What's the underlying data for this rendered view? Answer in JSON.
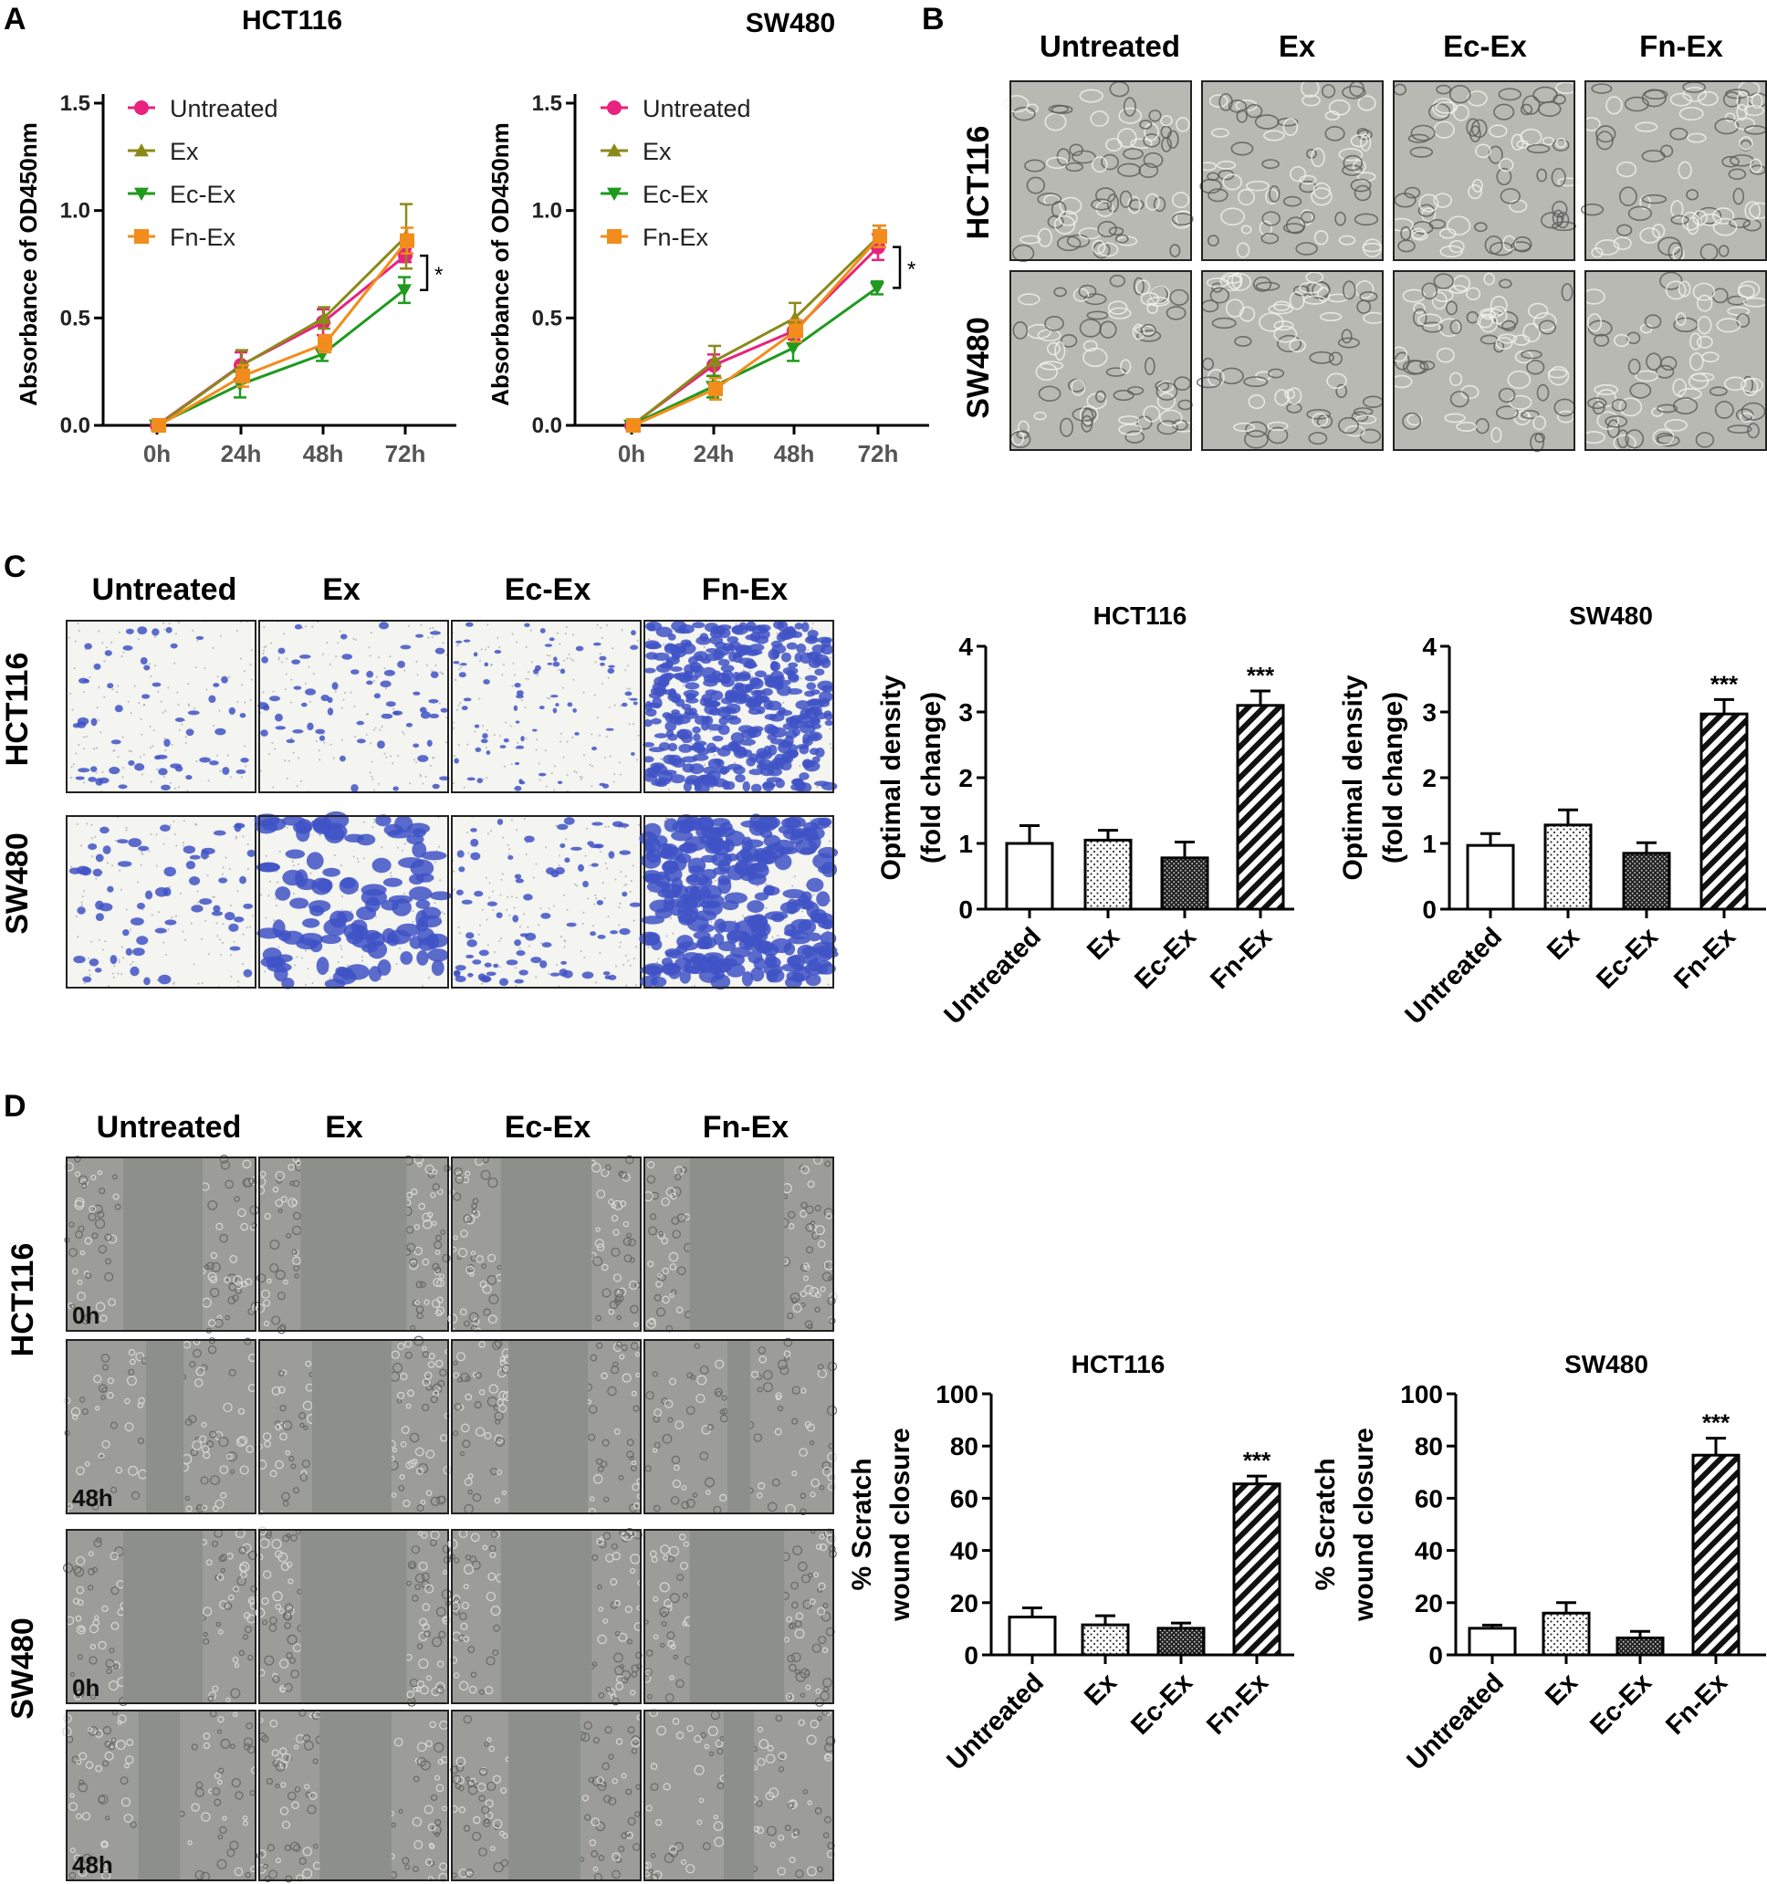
{
  "panel_letters": {
    "a": "A",
    "b": "B",
    "c": "C",
    "d": "D"
  },
  "groups": [
    "Untreated",
    "Ex",
    "Ec-Ex",
    "Fn-Ex"
  ],
  "cell_lines": [
    "HCT116",
    "SW480"
  ],
  "time_tags": {
    "t0": "0h",
    "t48": "48h"
  },
  "colors": {
    "untreated": "#e8227e",
    "ex": "#8a8a1a",
    "ecex": "#1e9a1e",
    "fnex": "#f28c1c",
    "cell_bg": "#b9b9b4",
    "transwell_bg": "#f4f4f0",
    "stain": "#3f52c6",
    "scratch_bg": "#9c9d98",
    "gap": "#8d8f8a"
  },
  "chart_data": [
    {
      "id": "A-HCT116",
      "type": "line",
      "title": "HCT116",
      "xlabel": "",
      "ylabel": "Absorbance of OD450nm",
      "categories": [
        "0h",
        "24h",
        "48h",
        "72h"
      ],
      "ylim": [
        0,
        1.5
      ],
      "yticks": [
        "0.0",
        "0.5",
        "1.0",
        "1.5"
      ],
      "legend": "top-left",
      "significance": "*",
      "series": [
        {
          "name": "Untreated",
          "color": "#e8227e",
          "marker": "circle",
          "values": [
            0,
            0.28,
            0.48,
            0.79
          ],
          "err": [
            0,
            0.06,
            0.06,
            0.03
          ]
        },
        {
          "name": "Ex",
          "color": "#8a8a1a",
          "marker": "triangle-up",
          "values": [
            0,
            0.28,
            0.5,
            0.88
          ],
          "err": [
            0,
            0.07,
            0.05,
            0.15
          ]
        },
        {
          "name": "Ec-Ex",
          "color": "#1e9a1e",
          "marker": "triangle-down",
          "values": [
            0,
            0.19,
            0.33,
            0.63
          ],
          "err": [
            0,
            0.06,
            0.03,
            0.06
          ]
        },
        {
          "name": "Fn-Ex",
          "color": "#f28c1c",
          "marker": "square",
          "values": [
            0,
            0.23,
            0.38,
            0.86
          ],
          "err": [
            0,
            0.05,
            0.04,
            0.06
          ]
        }
      ]
    },
    {
      "id": "A-SW480",
      "type": "line",
      "title": "SW480",
      "xlabel": "",
      "ylabel": "Absorbance of OD450nm",
      "categories": [
        "0h",
        "24h",
        "48h",
        "72h"
      ],
      "ylim": [
        0,
        1.5
      ],
      "yticks": [
        "0.0",
        "0.5",
        "1.0",
        "1.5"
      ],
      "legend": "top-left",
      "significance": "*",
      "series": [
        {
          "name": "Untreated",
          "color": "#e8227e",
          "marker": "circle",
          "values": [
            0,
            0.28,
            0.44,
            0.83
          ],
          "err": [
            0,
            0.05,
            0.04,
            0.06
          ]
        },
        {
          "name": "Ex",
          "color": "#8a8a1a",
          "marker": "triangle-up",
          "values": [
            0,
            0.3,
            0.5,
            0.88
          ],
          "err": [
            0,
            0.07,
            0.07,
            0.05
          ]
        },
        {
          "name": "Ec-Ex",
          "color": "#1e9a1e",
          "marker": "triangle-down",
          "values": [
            0,
            0.18,
            0.36,
            0.64
          ],
          "err": [
            0,
            0.05,
            0.06,
            0.03
          ]
        },
        {
          "name": "Fn-Ex",
          "color": "#f28c1c",
          "marker": "square",
          "values": [
            0,
            0.17,
            0.44,
            0.88
          ],
          "err": [
            0,
            0.05,
            0.05,
            0.05
          ]
        }
      ]
    },
    {
      "id": "C-HCT116",
      "type": "bar",
      "title": "HCT116",
      "xlabel": "",
      "ylabel": "Optimal density",
      "ylabel2": "(fold change)",
      "categories": [
        "Untreated",
        "Ex",
        "Ec-Ex",
        "Fn-Ex"
      ],
      "values": [
        1.0,
        1.05,
        0.78,
        3.1
      ],
      "err": [
        0.27,
        0.15,
        0.24,
        0.22
      ],
      "ylim": [
        0,
        4
      ],
      "yticks": [
        "0",
        "1",
        "2",
        "3",
        "4"
      ],
      "patterns": [
        "empty",
        "dots",
        "dense",
        "hatch"
      ],
      "annotations": [
        "",
        "",
        "",
        "***"
      ]
    },
    {
      "id": "C-SW480",
      "type": "bar",
      "title": "SW480",
      "xlabel": "",
      "ylabel": "Optimal density",
      "ylabel2": "(fold change)",
      "categories": [
        "Untreated",
        "Ex",
        "Ec-Ex",
        "Fn-Ex"
      ],
      "values": [
        0.97,
        1.28,
        0.85,
        2.97
      ],
      "err": [
        0.18,
        0.23,
        0.16,
        0.22
      ],
      "ylim": [
        0,
        4
      ],
      "yticks": [
        "0",
        "1",
        "2",
        "3",
        "4"
      ],
      "patterns": [
        "empty",
        "dots",
        "dense",
        "hatch"
      ],
      "annotations": [
        "",
        "",
        "",
        "***"
      ]
    },
    {
      "id": "D-HCT116",
      "type": "bar",
      "title": "HCT116",
      "xlabel": "",
      "ylabel": "%  Scratch",
      "ylabel2": "wound closure",
      "categories": [
        "Untreated",
        "Ex",
        "Ec-Ex",
        "Fn-Ex"
      ],
      "values": [
        14.5,
        11.5,
        10.2,
        65.5
      ],
      "err": [
        3.5,
        3.5,
        2,
        3
      ],
      "ylim": [
        0,
        100
      ],
      "yticks": [
        "0",
        "20",
        "40",
        "60",
        "80",
        "100"
      ],
      "patterns": [
        "empty",
        "dots",
        "dense",
        "hatch"
      ],
      "annotations": [
        "",
        "",
        "",
        "***"
      ]
    },
    {
      "id": "D-SW480",
      "type": "bar",
      "title": "SW480",
      "xlabel": "",
      "ylabel": "%  Scratch",
      "ylabel2": "wound closure",
      "categories": [
        "Untreated",
        "Ex",
        "Ec-Ex",
        "Fn-Ex"
      ],
      "values": [
        10.2,
        16,
        6.5,
        76.5
      ],
      "err": [
        1.2,
        4,
        2.5,
        6.5
      ],
      "ylim": [
        0,
        100
      ],
      "yticks": [
        "0",
        "20",
        "40",
        "60",
        "80",
        "100"
      ],
      "patterns": [
        "empty",
        "dots",
        "dense",
        "hatch"
      ],
      "annotations": [
        "",
        "",
        "",
        "***"
      ]
    }
  ]
}
